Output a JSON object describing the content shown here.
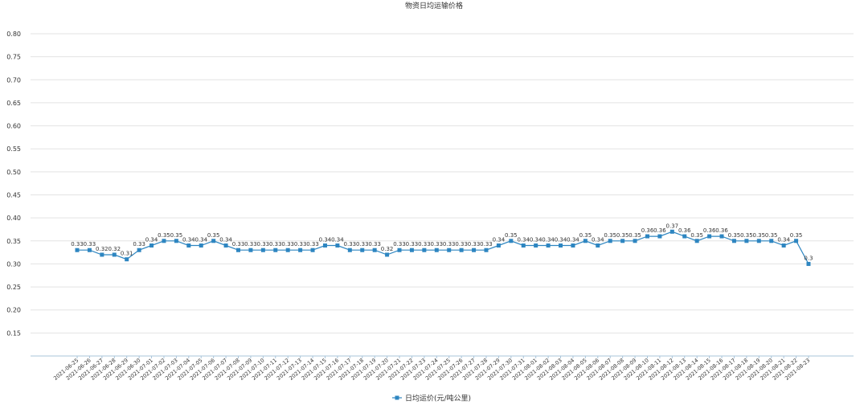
{
  "chart_data": {
    "type": "line",
    "title": "物资日均运输价格",
    "xlabel": "",
    "ylabel": "",
    "ylim": [
      0.1,
      0.8
    ],
    "yticks": [
      "0.15",
      "0.20",
      "0.25",
      "0.30",
      "0.35",
      "0.40",
      "0.45",
      "0.50",
      "0.55",
      "0.60",
      "0.65",
      "0.70",
      "0.75",
      "0.80"
    ],
    "grid": true,
    "legend_position": "bottom",
    "series_color": "#2e86c1",
    "categories": [
      "2021-06-25",
      "2021-06-26",
      "2021-06-27",
      "2021-06-28",
      "2021-06-29",
      "2021-06-30",
      "2021-07-01",
      "2021-07-02",
      "2021-07-03",
      "2021-07-04",
      "2021-07-05",
      "2021-07-06",
      "2021-07-07",
      "2021-07-08",
      "2021-07-09",
      "2021-07-10",
      "2021-07-11",
      "2021-07-12",
      "2021-07-13",
      "2021-07-14",
      "2021-07-15",
      "2021-07-16",
      "2021-07-17",
      "2021-07-18",
      "2021-07-19",
      "2021-07-20",
      "2021-07-21",
      "2021-07-22",
      "2021-07-23",
      "2021-07-24",
      "2021-07-25",
      "2021-07-26",
      "2021-07-27",
      "2021-07-28",
      "2021-07-29",
      "2021-07-30",
      "2021-07-31",
      "2021-08-01",
      "2021-08-02",
      "2021-08-03",
      "2021-08-04",
      "2021-08-05",
      "2021-08-06",
      "2021-08-07",
      "2021-08-08",
      "2021-08-09",
      "2021-08-10",
      "2021-08-11",
      "2021-08-12",
      "2021-08-13",
      "2021-08-14",
      "2021-08-15",
      "2021-08-16",
      "2021-08-17",
      "2021-08-18",
      "2021-08-19",
      "2021-08-20",
      "2021-08-21",
      "2021-08-22",
      "2021-08-23"
    ],
    "series": [
      {
        "name": "日均运价(元/吨公里)",
        "values": [
          0.33,
          0.33,
          0.32,
          0.32,
          0.31,
          0.33,
          0.34,
          0.35,
          0.35,
          0.34,
          0.34,
          0.35,
          0.34,
          0.33,
          0.33,
          0.33,
          0.33,
          0.33,
          0.33,
          0.33,
          0.34,
          0.34,
          0.33,
          0.33,
          0.33,
          0.32,
          0.33,
          0.33,
          0.33,
          0.33,
          0.33,
          0.33,
          0.33,
          0.33,
          0.34,
          0.35,
          0.34,
          0.34,
          0.34,
          0.34,
          0.34,
          0.35,
          0.34,
          0.35,
          0.35,
          0.35,
          0.36,
          0.36,
          0.37,
          0.36,
          0.35,
          0.36,
          0.36,
          0.35,
          0.35,
          0.35,
          0.35,
          0.34,
          0.35,
          0.3
        ],
        "labels": [
          "0.33",
          "0.33",
          "0.32",
          "0.32",
          "0.31",
          "0.33",
          "0.34",
          "0.35",
          "0.35",
          "0.34",
          "0.34",
          "0.35",
          "0.34",
          "0.33",
          "0.33",
          "0.33",
          "0.33",
          "0.33",
          "0.33",
          "0.33",
          "0.34",
          "0.34",
          "0.33",
          "0.33",
          "0.33",
          "0.32",
          "0.33",
          "0.33",
          "0.33",
          "0.33",
          "0.33",
          "0.33",
          "0.33",
          "0.33",
          "0.34",
          "0.35",
          "0.34",
          "0.34",
          "0.34",
          "0.34",
          "0.34",
          "0.35",
          "0.34",
          "0.35",
          "0.35",
          "0.35",
          "0.36",
          "0.36",
          "0.37",
          "0.36",
          "0.35",
          "0.36",
          "0.36",
          "0.35",
          "0.35",
          "0.35",
          "0.35",
          "0.34",
          "0.35",
          "0.3"
        ]
      }
    ]
  }
}
